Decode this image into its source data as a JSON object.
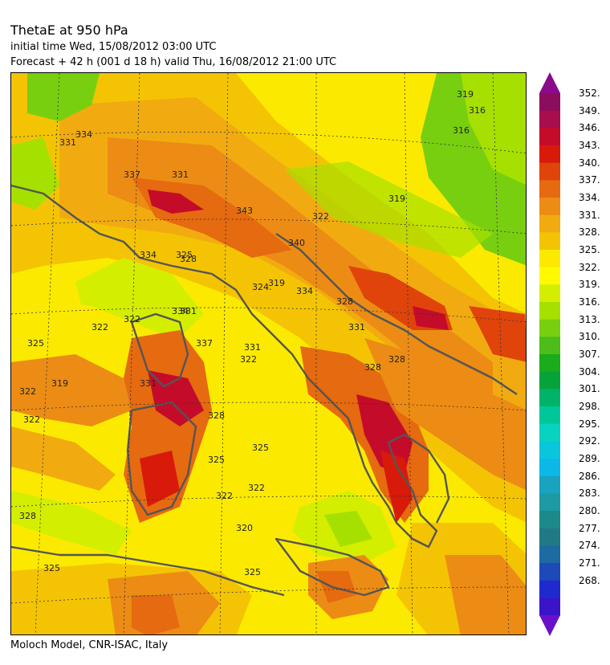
{
  "header": {
    "title": "ThetaE at 950 hPa",
    "initial_time": "initial time  Wed, 15/08/2012  03:00 UTC",
    "forecast": "Forecast  +  42 h  (001 d 18 h)  valid Thu, 16/08/2012 21:00 UTC"
  },
  "footer": {
    "credit": "Moloch Model, CNR-ISAC, Italy"
  },
  "colorbar": {
    "labels": [
      "352.",
      "349.",
      "346.",
      "343.",
      "340.",
      "337.",
      "334.",
      "331.",
      "328.",
      "325.",
      "322.",
      "319.",
      "316.",
      "313.",
      "310.",
      "307.",
      "304.",
      "301.",
      "298.",
      "295.",
      "292.",
      "289.",
      "286.",
      "283.",
      "280.",
      "277.",
      "274.",
      "271.",
      "268."
    ],
    "colors": [
      "#8b0d5e",
      "#a80d4c",
      "#c40c2a",
      "#d81a0a",
      "#e0440a",
      "#e56a10",
      "#ec8c14",
      "#f1ab10",
      "#f4c404",
      "#fbea00",
      "#fffa00",
      "#d4ee00",
      "#a6e000",
      "#78cf10",
      "#4cbd1a",
      "#1aac1a",
      "#06a33a",
      "#00b36a",
      "#00c79a",
      "#08d2c0",
      "#0ac6dc",
      "#0cb8e8",
      "#18a4c0",
      "#1e9aa4",
      "#1c8a8a",
      "#207a86",
      "#1e6aa2",
      "#1e4ab8",
      "#1e2ad0",
      "#3a14c8"
    ],
    "arrow_top_color": "#8a0a8a",
    "arrow_bottom_color": "#6a10c8"
  },
  "map": {
    "contour_labels": [
      "334",
      "331",
      "337",
      "331",
      "343",
      "340",
      "334",
      "328",
      "319",
      "324.",
      "319",
      "316",
      "316",
      "319",
      "322",
      "325",
      "331",
      "334",
      "328",
      "331",
      "337",
      "331",
      "328",
      "325",
      "322",
      "319",
      "322",
      "322",
      "322",
      "325",
      "322",
      "328",
      "325",
      "320",
      "328",
      "325",
      "325",
      "322",
      "322",
      "334",
      "331",
      "328"
    ]
  }
}
